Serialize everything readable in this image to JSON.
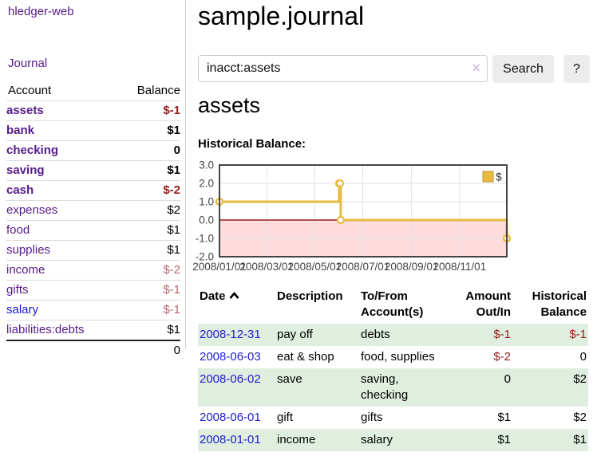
{
  "sidebar": {
    "brand": "hledger-web",
    "journal_link": "Journal",
    "headers": {
      "account": "Account",
      "balance": "Balance"
    },
    "accounts": [
      {
        "name": "assets",
        "level": 1,
        "bold": true,
        "balance": "$-1"
      },
      {
        "name": "bank",
        "level": 2,
        "bold": true,
        "balance": "$1"
      },
      {
        "name": "checking",
        "level": 3,
        "bold": true,
        "balance": "0"
      },
      {
        "name": "saving",
        "level": 3,
        "bold": true,
        "balance": "$1"
      },
      {
        "name": "cash",
        "level": 2,
        "bold": true,
        "balance": "$-2"
      },
      {
        "name": "expenses",
        "level": 1,
        "bold": false,
        "balance": "$2"
      },
      {
        "name": "food",
        "level": 2,
        "bold": false,
        "balance": "$1"
      },
      {
        "name": "supplies",
        "level": 2,
        "bold": false,
        "balance": "$1"
      },
      {
        "name": "income",
        "level": 1,
        "bold": false,
        "balance": "$-2",
        "muted": true
      },
      {
        "name": "gifts",
        "level": 2,
        "bold": false,
        "balance": "$-1",
        "muted": true
      },
      {
        "name": "salary",
        "level": 2,
        "bold": false,
        "balance": "$-1",
        "muted": true,
        "blue_link": true
      },
      {
        "name": "liabilities:debts",
        "level": 1,
        "bold": false,
        "balance": "$1"
      }
    ],
    "total": "0"
  },
  "main": {
    "title": "sample.journal",
    "account_heading": "assets"
  },
  "search": {
    "value": "inacct:assets",
    "clear_label": "×",
    "button_label": "Search",
    "help_label": "?"
  },
  "chart_data": {
    "type": "line",
    "title": "Historical Balance:",
    "legend": [
      {
        "label": "$",
        "color": "#e7bb3f"
      }
    ],
    "series": [
      {
        "name": "$",
        "color": "#e7bb3f",
        "points": [
          [
            "2008/01/01",
            1
          ],
          [
            "2008/06/01",
            2
          ],
          [
            "2008/06/02",
            2
          ],
          [
            "2008/06/03",
            0
          ],
          [
            "2008/12/31",
            -1
          ]
        ]
      }
    ],
    "step": true,
    "ylim": [
      -2,
      3
    ],
    "yticks": [
      "3.0",
      "2.0",
      "1.0",
      "0.0",
      "-1.0",
      "-2.0"
    ],
    "xticks": [
      "2008/01/01",
      "2008/03/01",
      "2008/05/01",
      "2008/07/01",
      "2008/09/01",
      "2008/11/01"
    ],
    "x_start": "2008/01/01",
    "x_end": "2008/12/31",
    "grid": true,
    "legend_position": "top-right",
    "negative_region_color": "#fcdcdc",
    "zero_line_color": "#941a1a"
  },
  "register": {
    "headers": {
      "date": "Date",
      "description": "Description",
      "tofrom": "To/From Account(s)",
      "amount": "Amount Out/In",
      "balance": "Historical Balance"
    },
    "rows": [
      {
        "date": "2008-12-31",
        "description": "pay off",
        "accounts": "debts",
        "amount": "$-1",
        "balance": "$-1"
      },
      {
        "date": "2008-06-03",
        "description": "eat & shop",
        "accounts": "food, supplies",
        "amount": "$-2",
        "balance": "0"
      },
      {
        "date": "2008-06-02",
        "description": "save",
        "accounts": "saving, checking",
        "amount": "0",
        "balance": "$2"
      },
      {
        "date": "2008-06-01",
        "description": "gift",
        "accounts": "gifts",
        "amount": "$1",
        "balance": "$2"
      },
      {
        "date": "2008-01-01",
        "description": "income",
        "accounts": "salary",
        "amount": "$1",
        "balance": "$1"
      }
    ]
  },
  "colors": {
    "link_purple": "#551a8b",
    "link_blue": "#2222cc",
    "negative": "#961c1c",
    "negative_muted": "#ba646e",
    "row_green": "#dfeede",
    "chart_line": "#e7bb3f"
  }
}
